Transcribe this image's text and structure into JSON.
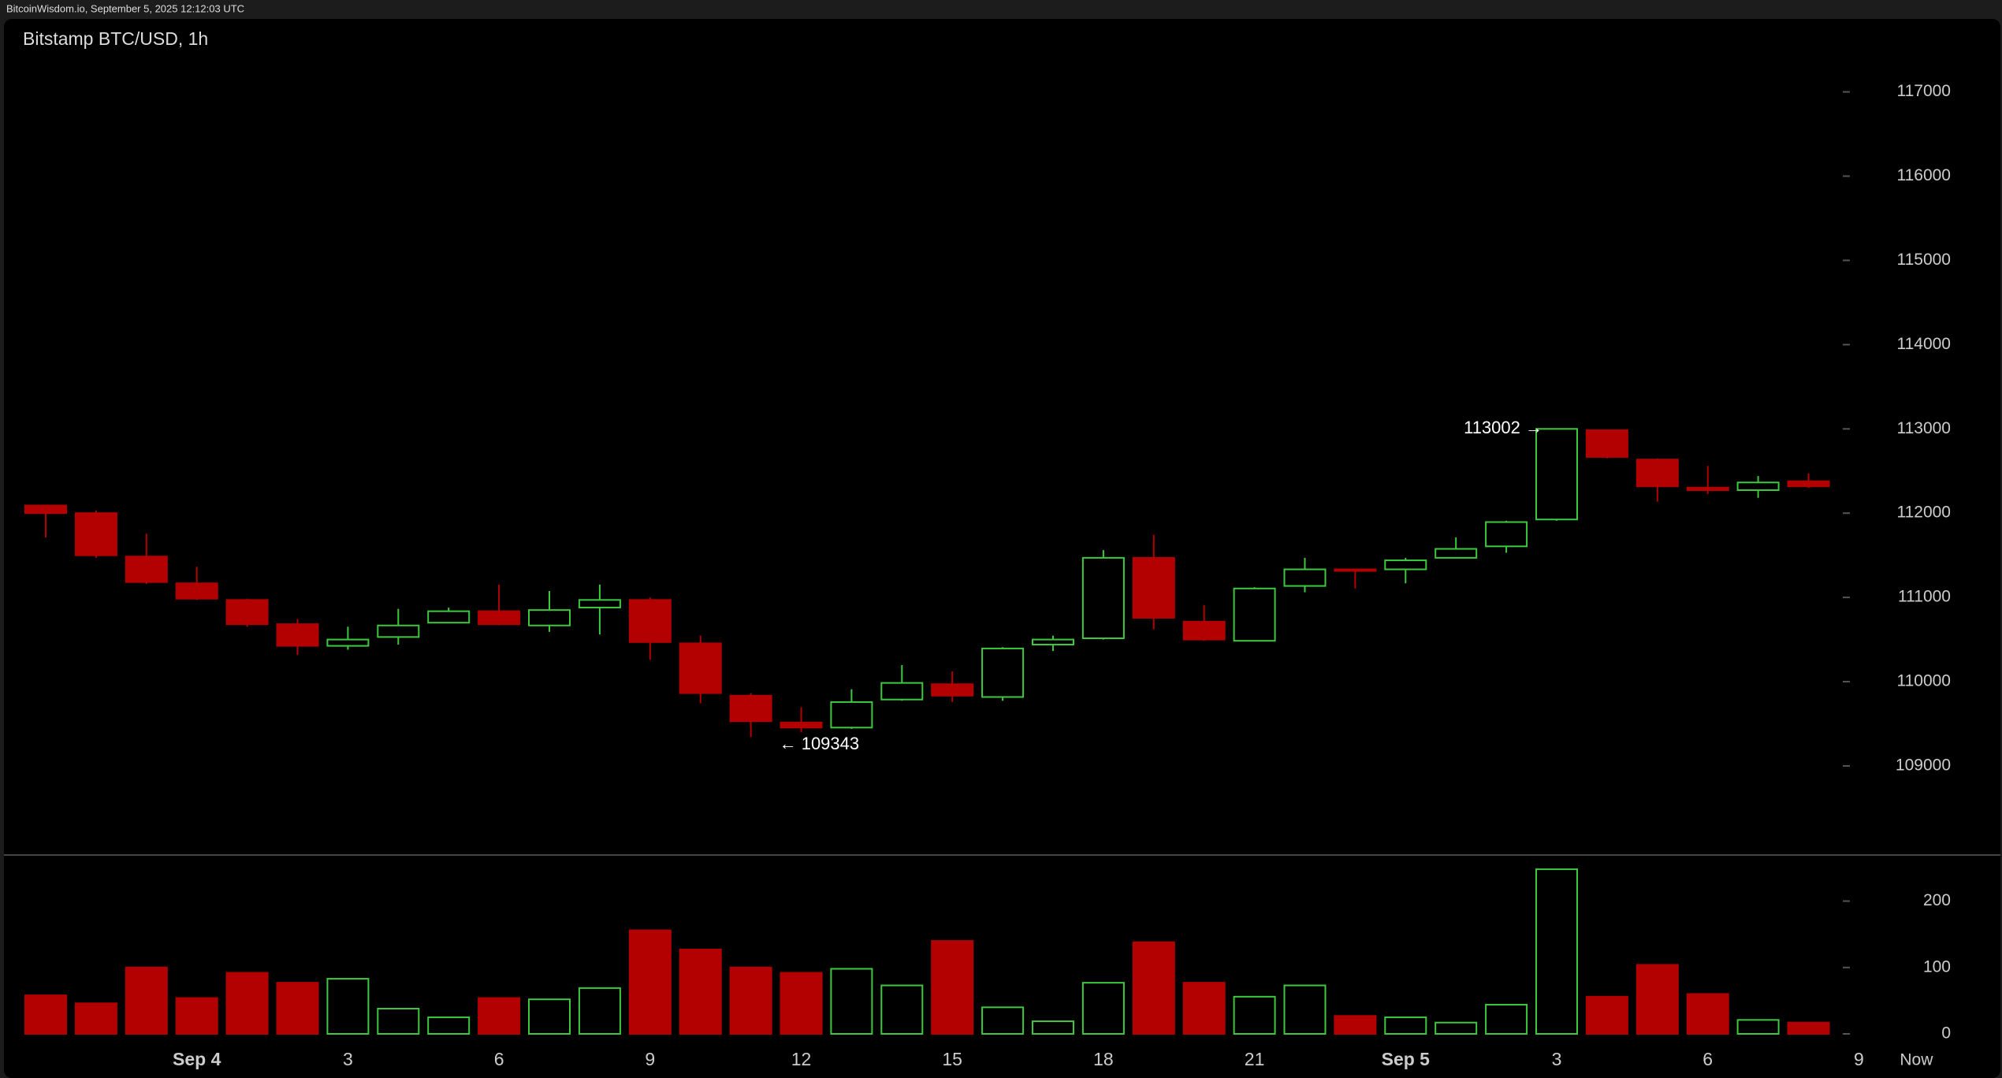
{
  "header": "BitcoinWisdom.io, September 5, 2025 12:12:03 UTC",
  "chart_data": {
    "type": "candlestick",
    "title": "Bitstamp BTC/USD, 1h",
    "categories": [
      null,
      null,
      null,
      "Sep 4",
      null,
      null,
      "3",
      null,
      null,
      "6",
      null,
      null,
      "9",
      null,
      null,
      "12",
      null,
      null,
      "15",
      null,
      null,
      "18",
      null,
      null,
      "21",
      null,
      null,
      "Sep 5",
      null,
      null,
      "3",
      null,
      null,
      "6",
      null,
      null
    ],
    "next_label": "9",
    "now_label": "Now",
    "up_color": "#3ec83e",
    "down_color": "#b30000",
    "open": [
      112091,
      112000,
      111485,
      111167,
      110970,
      110682,
      110425,
      110530,
      110700,
      110836,
      110667,
      110880,
      110970,
      110455,
      109834,
      109515,
      109455,
      109788,
      109970,
      109818,
      110440,
      110515,
      111470,
      110712,
      110485,
      111136,
      111333,
      111333,
      111470,
      111606,
      111925,
      112985,
      112636,
      112303,
      112273,
      112379
    ],
    "high": [
      112100,
      112030,
      111758,
      111364,
      110985,
      110743,
      110652,
      110864,
      110879,
      111152,
      111076,
      111152,
      111000,
      110546,
      109864,
      109697,
      109910,
      110197,
      110121,
      110410,
      110546,
      111561,
      111743,
      110910,
      111121,
      111470,
      111333,
      111470,
      111712,
      111910,
      113002,
      112990,
      112650,
      112561,
      112440,
      112470
    ],
    "low": [
      111712,
      111470,
      111160,
      110970,
      110652,
      110318,
      110379,
      110440,
      110700,
      110670,
      110591,
      110560,
      110258,
      109743,
      109343,
      109400,
      109440,
      109773,
      109758,
      109773,
      110364,
      110500,
      110621,
      110485,
      110485,
      111061,
      111106,
      111167,
      111470,
      111530,
      111910,
      112650,
      112136,
      112228,
      112182,
      112300
    ],
    "close": [
      112000,
      111500,
      111182,
      110985,
      110682,
      110425,
      110500,
      110667,
      110836,
      110682,
      110850,
      110970,
      110470,
      109864,
      109530,
      109455,
      109758,
      109985,
      109834,
      110394,
      110500,
      111470,
      110758,
      110500,
      111106,
      111333,
      111318,
      111440,
      111576,
      111894,
      113000,
      112667,
      112318,
      112273,
      112364,
      112318
    ],
    "volume": [
      58,
      46,
      100,
      54,
      92,
      77,
      83,
      38,
      25,
      54,
      52,
      69,
      156,
      127,
      100,
      92,
      98,
      73,
      140,
      40,
      19,
      77,
      138,
      77,
      56,
      73,
      27,
      25,
      17,
      44,
      248,
      56,
      104,
      60,
      21,
      17
    ],
    "ylim": [
      108000,
      118000
    ],
    "yticks": [
      109000,
      110000,
      111000,
      112000,
      113000,
      114000,
      115000,
      116000,
      117000
    ],
    "volume_ylim": [
      0,
      250
    ],
    "volume_yticks": [
      0,
      100,
      200
    ],
    "annotations": [
      {
        "label": "113002 →",
        "value": 113002
      },
      {
        "label": "← 109343",
        "value": 109343
      }
    ]
  }
}
